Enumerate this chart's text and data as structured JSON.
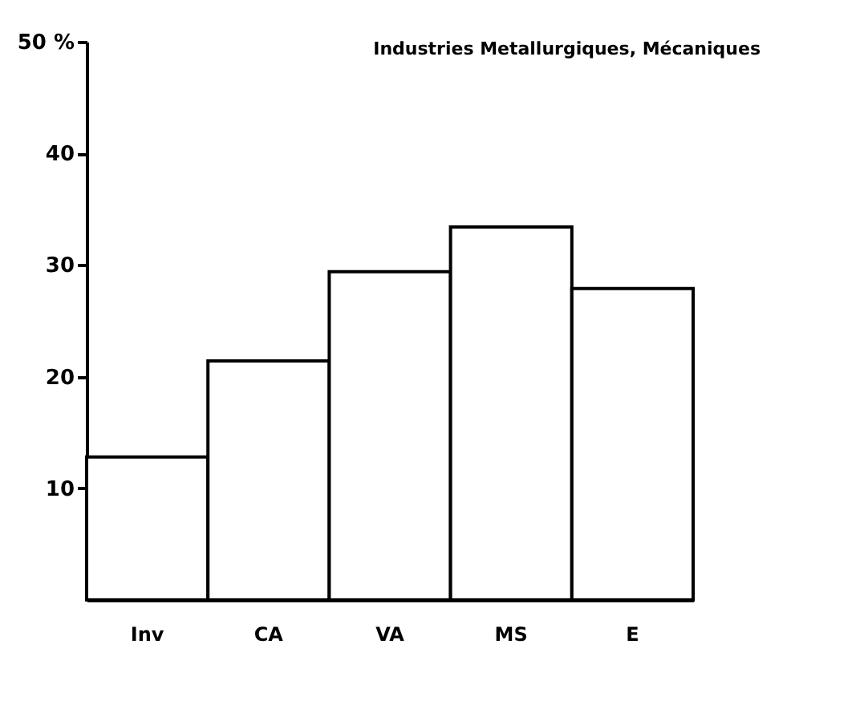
{
  "chart_data": {
    "type": "bar",
    "title": "Industries Metallurgiques, Mécaniques",
    "categories": [
      "Inv",
      "CA",
      "VA",
      "MS",
      "E"
    ],
    "values": [
      12.8,
      21.4,
      29.4,
      33.4,
      27.9
    ],
    "color": "#ffffff",
    "ylim": [
      0,
      50
    ],
    "yticks": [
      10,
      20,
      30,
      40,
      {
        "value": 50,
        "label": "50 %"
      }
    ],
    "grid": false
  }
}
